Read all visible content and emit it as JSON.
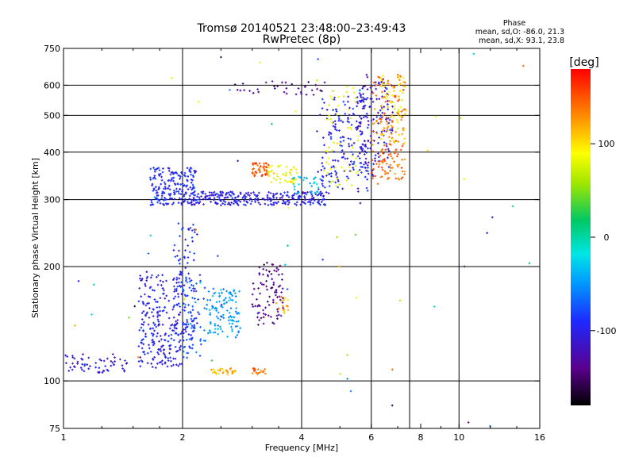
{
  "chart_data": {
    "type": "scatter",
    "title": "Tromsø 20140521 23:48:00–23:49:43",
    "subtitle": "RwPretec (8p)",
    "xlabel": "Frequency [MHz]",
    "ylabel": "Stationary phase Virtual Height [km]",
    "xscale": "log",
    "yscale": "log",
    "xlim": [
      1,
      16
    ],
    "ylim": [
      75,
      750
    ],
    "x_ticks": [
      1,
      2,
      4,
      6,
      8,
      10,
      16
    ],
    "x_tick_labels": [
      "1",
      "2",
      "4",
      "6",
      "8",
      "10",
      "16"
    ],
    "y_ticks": [
      75,
      100,
      200,
      300,
      400,
      500,
      600,
      750
    ],
    "y_tick_labels": [
      "75",
      "100",
      "200",
      "300",
      "400",
      "500",
      "600",
      "750"
    ],
    "grid_x": [
      2,
      4,
      6,
      7.5,
      10
    ],
    "grid_y": [
      100,
      200,
      300,
      400,
      500,
      600
    ],
    "stats": {
      "heading": "Phase",
      "line_o": "mean, sd,O: -86.0, 21.3",
      "line_x": "mean, sd,X:  93.1, 23.8"
    },
    "colorbar": {
      "label": "[deg]",
      "range": [
        -180,
        180
      ],
      "tick_values": [
        100,
        0,
        -100
      ],
      "tick_labels": [
        "100",
        "0",
        "-100"
      ]
    },
    "clusters": [
      {
        "f": [
          1.0,
          1.45
        ],
        "h": [
          105,
          118
        ],
        "phase": -108,
        "n": 60
      },
      {
        "f": [
          1.55,
          2.0
        ],
        "h": [
          108,
          190
        ],
        "phase": -98,
        "n": 240
      },
      {
        "f": [
          1.9,
          2.15
        ],
        "h": [
          120,
          260
        ],
        "phase": -92,
        "n": 90
      },
      {
        "f": [
          2.0,
          2.3
        ],
        "h": [
          115,
          190
        ],
        "phase": -68,
        "n": 70
      },
      {
        "f": [
          2.3,
          2.8
        ],
        "h": [
          130,
          175
        ],
        "phase": -48,
        "n": 110
      },
      {
        "f": [
          3.0,
          3.6
        ],
        "h": [
          140,
          205
        ],
        "phase": -138,
        "n": 90
      },
      {
        "f": [
          3.45,
          3.75
        ],
        "h": [
          150,
          170
        ],
        "phase": 115,
        "n": 15
      },
      {
        "f": [
          2.35,
          2.75
        ],
        "h": [
          104,
          108
        ],
        "phase": 118,
        "n": 30
      },
      {
        "f": [
          3.0,
          3.25
        ],
        "h": [
          104,
          108
        ],
        "phase": 145,
        "n": 18
      },
      {
        "f": [
          1.65,
          2.15
        ],
        "h": [
          290,
          365
        ],
        "phase": -92,
        "n": 190
      },
      {
        "f": [
          2.1,
          4.7
        ],
        "h": [
          290,
          315
        ],
        "phase": -100,
        "n": 280
      },
      {
        "f": [
          3.0,
          3.3
        ],
        "h": [
          345,
          375
        ],
        "phase": 150,
        "n": 45
      },
      {
        "f": [
          3.3,
          3.9
        ],
        "h": [
          330,
          370
        ],
        "phase": 92,
        "n": 45
      },
      {
        "f": [
          3.8,
          4.5
        ],
        "h": [
          310,
          345
        ],
        "phase": -32,
        "n": 30
      },
      {
        "f": [
          4.4,
          5.9
        ],
        "h": [
          310,
          560
        ],
        "phase": -95,
        "n": 170
      },
      {
        "f": [
          4.6,
          5.6
        ],
        "h": [
          310,
          600
        ],
        "phase": 85,
        "n": 55
      },
      {
        "f": [
          5.6,
          6.8
        ],
        "h": [
          345,
          640
        ],
        "phase": -110,
        "n": 140
      },
      {
        "f": [
          6.0,
          7.3
        ],
        "h": [
          330,
          650
        ],
        "phase": 140,
        "n": 150
      },
      {
        "f": [
          6.3,
          7.4
        ],
        "h": [
          420,
          640
        ],
        "phase": 95,
        "n": 60
      },
      {
        "f": [
          2.7,
          4.6
        ],
        "h": [
          560,
          620
        ],
        "phase": -135,
        "n": 35
      },
      {
        "f": [
          1.05,
          16
        ],
        "h": [
          75,
          750
        ],
        "phase": 0,
        "n": 70,
        "scatter": true
      }
    ]
  }
}
